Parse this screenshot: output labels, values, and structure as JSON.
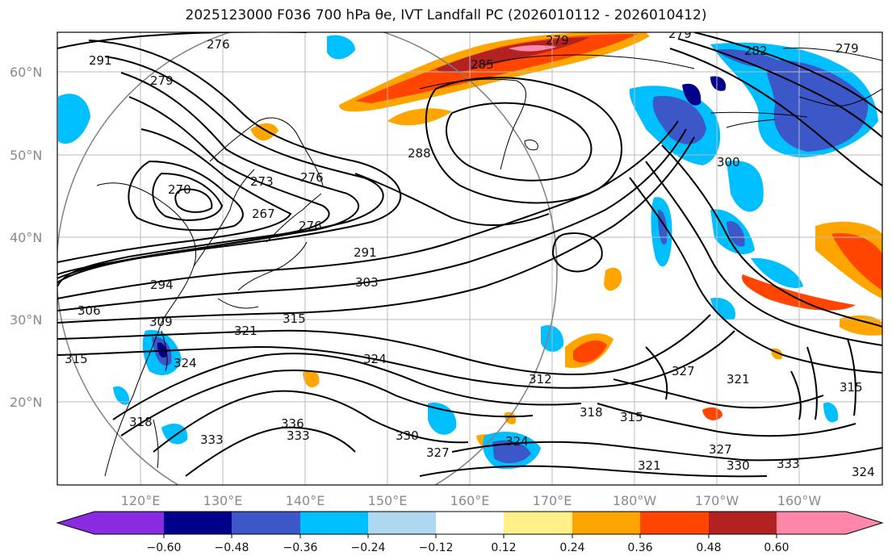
{
  "title": "2025123000 F036 700 hPa θe, IVT Landfall PC (2026010112 - 2026010412)",
  "map": {
    "lon_labels": [
      "120°E",
      "130°E",
      "140°E",
      "150°E",
      "160°E",
      "170°E",
      "180°W",
      "170°W",
      "160°W"
    ],
    "lat_labels": [
      "60°N",
      "50°N",
      "40°N",
      "30°N",
      "20°N"
    ],
    "contour_labels": [
      "276",
      "279",
      "291",
      "279",
      "273",
      "270",
      "267",
      "276",
      "276",
      "288",
      "285",
      "279",
      "282",
      "279",
      "294",
      "291",
      "303",
      "300",
      "306",
      "309",
      "315",
      "321",
      "315",
      "324",
      "324",
      "312",
      "327",
      "321",
      "318",
      "315",
      "318",
      "333",
      "336",
      "333",
      "330",
      "327",
      "324",
      "327",
      "321",
      "330",
      "333",
      "324",
      "315"
    ]
  },
  "colorbar": {
    "ticks": [
      "−0.60",
      "−0.48",
      "−0.36",
      "−0.24",
      "−0.12",
      "0.12",
      "0.24",
      "0.36",
      "0.48",
      "0.60"
    ],
    "colors": [
      "#8a2be2",
      "#00008b",
      "#3b57c8",
      "#00bfff",
      "#add8f0",
      "#ffffff",
      "#fff08a",
      "#ffa500",
      "#ff4500",
      "#b22222",
      "#ff88aa"
    ]
  }
}
